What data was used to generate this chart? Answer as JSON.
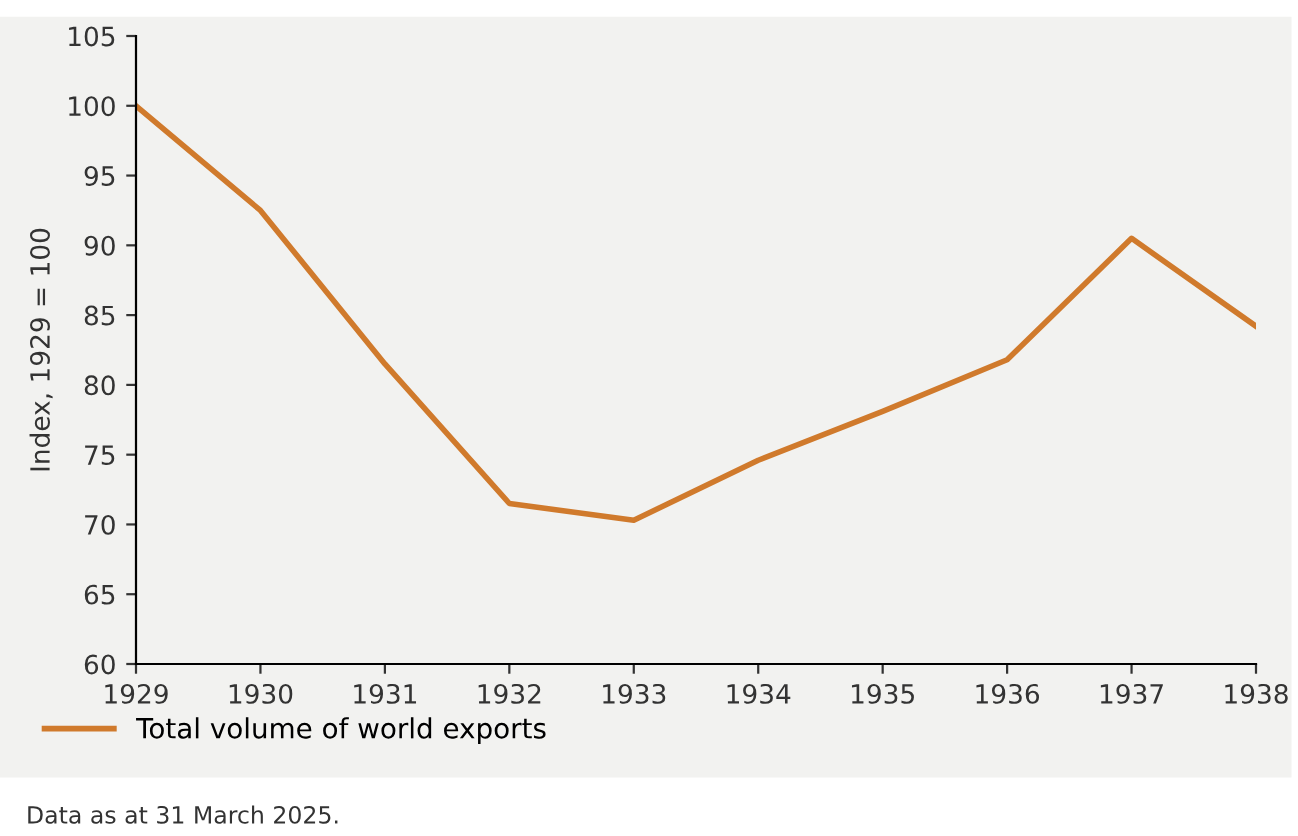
{
  "chart_data": {
    "type": "line",
    "ylabel": "Index, 1929 = 100",
    "x": [
      1929,
      1930,
      1931,
      1932,
      1933,
      1934,
      1935,
      1936,
      1937,
      1938
    ],
    "series": [
      {
        "name": "Total volume of world exports",
        "color": "#d07a2c",
        "values": [
          100,
          92.5,
          81.5,
          71.5,
          70.3,
          74.6,
          78.1,
          81.8,
          90.5,
          84.2
        ]
      }
    ],
    "xlim": [
      1929,
      1938
    ],
    "xticks": [
      1929,
      1930,
      1931,
      1932,
      1933,
      1934,
      1935,
      1936,
      1937,
      1938
    ],
    "ylim": [
      60,
      105
    ],
    "yticks": [
      60,
      65,
      70,
      75,
      80,
      85,
      90,
      95,
      100,
      105
    ],
    "grid": false,
    "legend": "bottom left",
    "marker": "none",
    "line_style": "solid",
    "annotations": [
      "Data as at 31 March 2025."
    ]
  }
}
